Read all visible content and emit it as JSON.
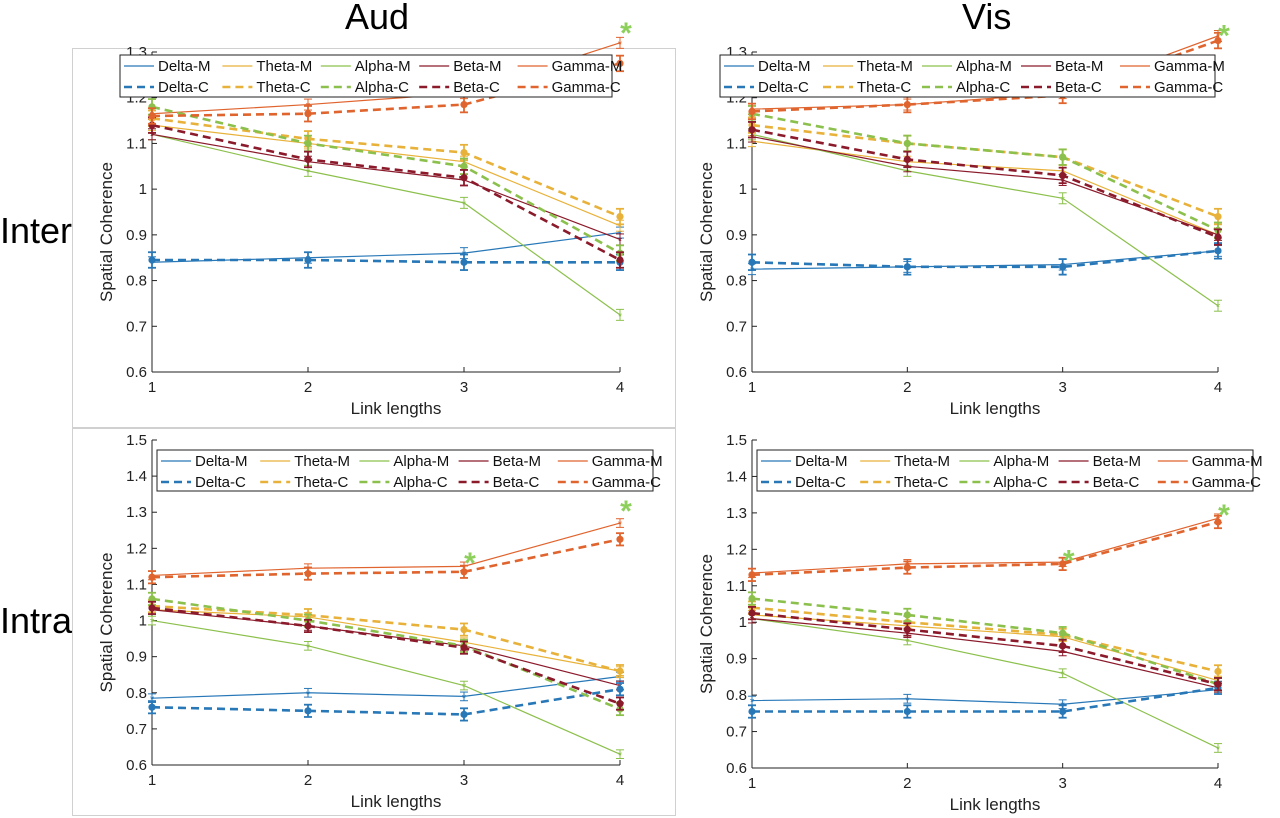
{
  "column_titles": [
    "Aud",
    "Vis"
  ],
  "row_titles": [
    "Inter",
    "Intra"
  ],
  "colors": {
    "Delta": "#2878b8",
    "Theta": "#e8b23a",
    "Alpha": "#8cc04c",
    "Beta": "#8b1a2b",
    "Gamma": "#e0642e",
    "significance": "#8ccf5a"
  },
  "legend_entries": {
    "M": [
      "Delta-M",
      "Theta-M",
      "Alpha-M",
      "Beta-M",
      "Gamma-M"
    ],
    "C": [
      "Delta-C",
      "Theta-C",
      "Alpha-C",
      "Beta-C",
      "Gamma-C"
    ]
  },
  "chart_data": [
    {
      "type": "line",
      "panel": "Aud-Inter",
      "xlabel": "Link lengths",
      "ylabel": "Spatial Coherence",
      "x": [
        1,
        2,
        3,
        4
      ],
      "xticks": [
        "1",
        "2",
        "3",
        "4"
      ],
      "ylim": [
        0.6,
        1.3
      ],
      "yticks": [
        "0.6",
        "0.7",
        "0.8",
        "0.9",
        "1",
        "1.1",
        "1.2",
        "1.3"
      ],
      "series": [
        {
          "name": "Delta-M",
          "band": "Delta",
          "style": "solid",
          "values": [
            0.84,
            0.85,
            0.86,
            0.905
          ]
        },
        {
          "name": "Theta-M",
          "band": "Theta",
          "style": "solid",
          "values": [
            1.14,
            1.1,
            1.06,
            0.92
          ]
        },
        {
          "name": "Alpha-M",
          "band": "Alpha",
          "style": "solid",
          "values": [
            1.12,
            1.04,
            0.97,
            0.725
          ]
        },
        {
          "name": "Beta-M",
          "band": "Beta",
          "style": "solid",
          "values": [
            1.12,
            1.06,
            1.02,
            0.89
          ]
        },
        {
          "name": "Gamma-M",
          "band": "Gamma",
          "style": "solid",
          "values": [
            1.165,
            1.185,
            1.21,
            1.32
          ]
        },
        {
          "name": "Delta-C",
          "band": "Delta",
          "style": "dashed",
          "values": [
            0.845,
            0.845,
            0.84,
            0.84
          ]
        },
        {
          "name": "Theta-C",
          "band": "Theta",
          "style": "dashed",
          "values": [
            1.155,
            1.11,
            1.08,
            0.94
          ]
        },
        {
          "name": "Alpha-C",
          "band": "Alpha",
          "style": "dashed",
          "values": [
            1.18,
            1.1,
            1.05,
            0.86
          ]
        },
        {
          "name": "Beta-C",
          "band": "Beta",
          "style": "dashed",
          "values": [
            1.14,
            1.065,
            1.025,
            0.845
          ]
        },
        {
          "name": "Gamma-C",
          "band": "Gamma",
          "style": "dashed",
          "values": [
            1.16,
            1.165,
            1.185,
            1.275
          ]
        }
      ],
      "significance_markers": [
        {
          "x": 4,
          "y": 1.35
        }
      ],
      "legend_position": "top"
    },
    {
      "type": "line",
      "panel": "Vis-Inter",
      "xlabel": "Link lengths",
      "ylabel": "Spatial Coherence",
      "x": [
        1,
        2,
        3,
        4
      ],
      "xticks": [
        "1",
        "2",
        "3",
        "4"
      ],
      "ylim": [
        0.6,
        1.3
      ],
      "yticks": [
        "0.6",
        "0.7",
        "0.8",
        "0.9",
        "1",
        "1.1",
        "1.2",
        "1.3"
      ],
      "series": [
        {
          "name": "Delta-M",
          "band": "Delta",
          "style": "solid",
          "values": [
            0.825,
            0.83,
            0.835,
            0.865
          ]
        },
        {
          "name": "Theta-M",
          "band": "Theta",
          "style": "solid",
          "values": [
            1.105,
            1.06,
            1.04,
            0.9
          ]
        },
        {
          "name": "Alpha-M",
          "band": "Alpha",
          "style": "solid",
          "values": [
            1.12,
            1.04,
            0.98,
            0.745
          ]
        },
        {
          "name": "Beta-M",
          "band": "Beta",
          "style": "solid",
          "values": [
            1.115,
            1.05,
            1.02,
            0.9
          ]
        },
        {
          "name": "Gamma-M",
          "band": "Gamma",
          "style": "solid",
          "values": [
            1.175,
            1.185,
            1.21,
            1.335
          ]
        },
        {
          "name": "Delta-C",
          "band": "Delta",
          "style": "dashed",
          "values": [
            0.84,
            0.83,
            0.83,
            0.865
          ]
        },
        {
          "name": "Theta-C",
          "band": "Theta",
          "style": "dashed",
          "values": [
            1.14,
            1.1,
            1.07,
            0.94
          ]
        },
        {
          "name": "Alpha-C",
          "band": "Alpha",
          "style": "dashed",
          "values": [
            1.165,
            1.1,
            1.07,
            0.91
          ]
        },
        {
          "name": "Beta-C",
          "band": "Beta",
          "style": "dashed",
          "values": [
            1.13,
            1.065,
            1.03,
            0.895
          ]
        },
        {
          "name": "Gamma-C",
          "band": "Gamma",
          "style": "dashed",
          "values": [
            1.17,
            1.185,
            1.205,
            1.325
          ]
        }
      ],
      "significance_markers": [
        {
          "x": 4,
          "y": 1.345
        }
      ],
      "legend_position": "top"
    },
    {
      "type": "line",
      "panel": "Aud-Intra",
      "xlabel": "Link lengths",
      "ylabel": "Spatial Coherence",
      "x": [
        1,
        2,
        3,
        4
      ],
      "xticks": [
        "1",
        "2",
        "3",
        "4"
      ],
      "ylim": [
        0.6,
        1.5
      ],
      "yticks": [
        "0.6",
        "0.7",
        "0.8",
        "0.9",
        "1",
        "1.1",
        "1.2",
        "1.3",
        "1.4",
        "1.5"
      ],
      "series": [
        {
          "name": "Delta-M",
          "band": "Delta",
          "style": "solid",
          "values": [
            0.785,
            0.8,
            0.79,
            0.845
          ]
        },
        {
          "name": "Theta-M",
          "band": "Theta",
          "style": "solid",
          "values": [
            1.03,
            1.01,
            0.94,
            0.86
          ]
        },
        {
          "name": "Alpha-M",
          "band": "Alpha",
          "style": "solid",
          "values": [
            1.0,
            0.93,
            0.82,
            0.63
          ]
        },
        {
          "name": "Beta-M",
          "band": "Beta",
          "style": "solid",
          "values": [
            1.03,
            0.985,
            0.93,
            0.82
          ]
        },
        {
          "name": "Gamma-M",
          "band": "Gamma",
          "style": "solid",
          "values": [
            1.125,
            1.145,
            1.15,
            1.27
          ]
        },
        {
          "name": "Delta-C",
          "band": "Delta",
          "style": "dashed",
          "values": [
            0.76,
            0.75,
            0.74,
            0.81
          ]
        },
        {
          "name": "Theta-C",
          "band": "Theta",
          "style": "dashed",
          "values": [
            1.04,
            1.015,
            0.975,
            0.86
          ]
        },
        {
          "name": "Alpha-C",
          "band": "Alpha",
          "style": "dashed",
          "values": [
            1.06,
            1.0,
            0.93,
            0.755
          ]
        },
        {
          "name": "Beta-C",
          "band": "Beta",
          "style": "dashed",
          "values": [
            1.035,
            0.985,
            0.925,
            0.77
          ]
        },
        {
          "name": "Gamma-C",
          "band": "Gamma",
          "style": "dashed",
          "values": [
            1.12,
            1.13,
            1.135,
            1.225
          ]
        }
      ],
      "significance_markers": [
        {
          "x": 3,
          "y": 1.17
        },
        {
          "x": 4,
          "y": 1.315
        }
      ],
      "legend_position": "top"
    },
    {
      "type": "line",
      "panel": "Vis-Intra",
      "xlabel": "Link lengths",
      "ylabel": "Spatial Coherence",
      "x": [
        1,
        2,
        3,
        4
      ],
      "xticks": [
        "1",
        "2",
        "3",
        "4"
      ],
      "ylim": [
        0.6,
        1.5
      ],
      "yticks": [
        "0.6",
        "0.7",
        "0.8",
        "0.9",
        "1",
        "1.1",
        "1.2",
        "1.3",
        "1.4",
        "1.5"
      ],
      "series": [
        {
          "name": "Delta-M",
          "band": "Delta",
          "style": "solid",
          "values": [
            0.785,
            0.79,
            0.775,
            0.815
          ]
        },
        {
          "name": "Theta-M",
          "band": "Theta",
          "style": "solid",
          "values": [
            1.02,
            0.99,
            0.96,
            0.84
          ]
        },
        {
          "name": "Alpha-M",
          "band": "Alpha",
          "style": "solid",
          "values": [
            1.01,
            0.95,
            0.86,
            0.655
          ]
        },
        {
          "name": "Beta-M",
          "band": "Beta",
          "style": "solid",
          "values": [
            1.01,
            0.97,
            0.92,
            0.82
          ]
        },
        {
          "name": "Gamma-M",
          "band": "Gamma",
          "style": "solid",
          "values": [
            1.135,
            1.16,
            1.165,
            1.285
          ]
        },
        {
          "name": "Delta-C",
          "band": "Delta",
          "style": "dashed",
          "values": [
            0.755,
            0.755,
            0.755,
            0.82
          ]
        },
        {
          "name": "Theta-C",
          "band": "Theta",
          "style": "dashed",
          "values": [
            1.04,
            1.0,
            0.965,
            0.865
          ]
        },
        {
          "name": "Alpha-C",
          "band": "Alpha",
          "style": "dashed",
          "values": [
            1.065,
            1.02,
            0.97,
            0.83
          ]
        },
        {
          "name": "Beta-C",
          "band": "Beta",
          "style": "dashed",
          "values": [
            1.025,
            0.98,
            0.935,
            0.83
          ]
        },
        {
          "name": "Gamma-C",
          "band": "Gamma",
          "style": "dashed",
          "values": [
            1.13,
            1.15,
            1.16,
            1.275
          ]
        }
      ],
      "significance_markers": [
        {
          "x": 3,
          "y": 1.18
        },
        {
          "x": 4,
          "y": 1.305
        }
      ],
      "legend_position": "top"
    }
  ]
}
